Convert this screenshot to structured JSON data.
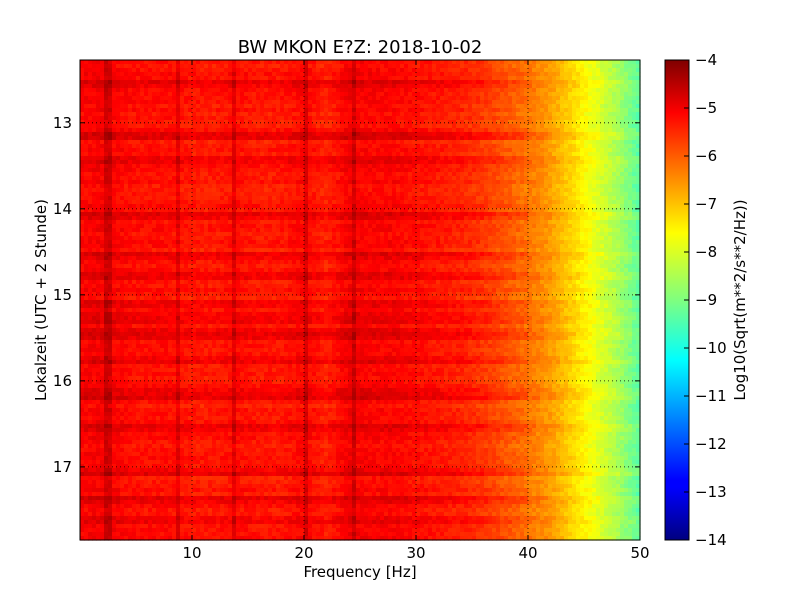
{
  "chart_data": {
    "type": "heatmap",
    "title": "BW MKON E?Z: 2018-10-02",
    "xlabel": "Frequency [Hz]",
    "ylabel": "Lokalzeit (UTC + 2 Stunde)",
    "xlim": [
      0,
      50
    ],
    "ylim": [
      12.27,
      17.85
    ],
    "y_inverted": true,
    "x_ticks": [
      10,
      20,
      30,
      40,
      50
    ],
    "y_ticks": [
      13,
      14,
      15,
      16,
      17
    ],
    "grid": true,
    "colormap": "jet",
    "colorbar": {
      "label": "Log10(Sqrt(m**2/s**2/Hz))",
      "range": [
        -14,
        -4
      ],
      "ticks": [
        -4,
        -5,
        -6,
        -7,
        -8,
        -9,
        -10,
        -11,
        -12,
        -13,
        -14
      ]
    },
    "frequency_profile": {
      "frequency_hz": [
        0,
        2,
        5,
        8,
        10,
        12,
        14,
        16,
        18,
        20,
        22,
        24,
        26,
        28,
        30,
        32,
        34,
        36,
        38,
        40,
        42,
        44,
        46,
        48,
        50
      ],
      "log10_amplitude": [
        -5.3,
        -5.2,
        -5.4,
        -5.4,
        -5.5,
        -5.5,
        -5.4,
        -5.5,
        -5.5,
        -5.3,
        -5.6,
        -5.2,
        -5.3,
        -5.3,
        -5.4,
        -5.5,
        -5.6,
        -5.8,
        -6.1,
        -6.4,
        -6.8,
        -7.4,
        -8.0,
        -8.6,
        -9.4
      ]
    },
    "vertical_lines_hz": [
      2.5,
      8.7,
      13.8,
      20.2,
      24.5
    ],
    "horizontal_bands_hour": [
      12.55,
      13.15,
      13.42,
      14.08,
      14.55,
      14.78,
      15.12,
      15.27,
      15.45,
      15.75,
      16.15,
      16.55,
      17.05,
      17.38,
      17.62
    ]
  }
}
